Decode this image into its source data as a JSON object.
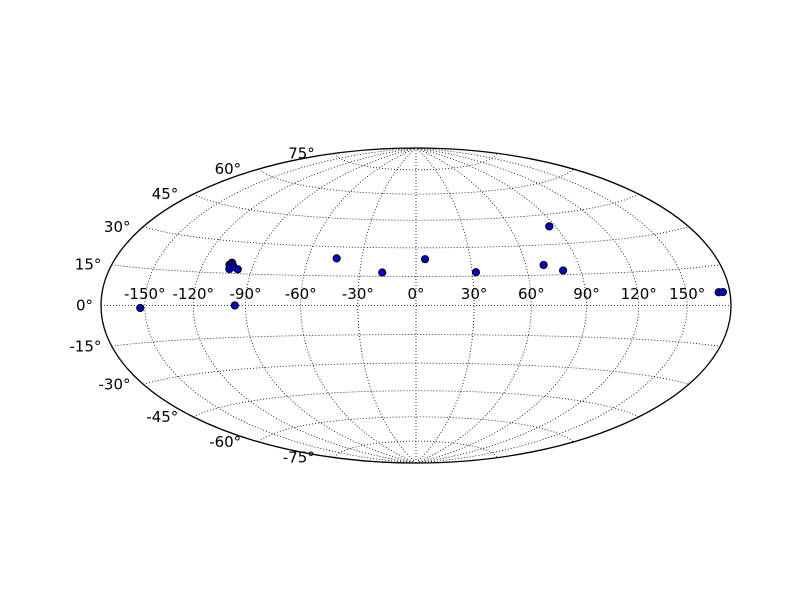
{
  "chart_data": {
    "type": "scatter",
    "projection": "hammer",
    "title": "",
    "xlabel": "",
    "ylabel": "",
    "grid": true,
    "grid_style": "dotted",
    "lon_ticks": [
      -150,
      -120,
      -90,
      -60,
      -30,
      0,
      30,
      60,
      90,
      120,
      150
    ],
    "lat_ticks": [
      -75,
      -60,
      -45,
      -30,
      -15,
      0,
      15,
      30,
      45,
      60,
      75
    ],
    "lon_tick_labels": [
      "-150°",
      "-120°",
      "-90°",
      "-60°",
      "-30°",
      "0°",
      "30°",
      "60°",
      "90°",
      "120°",
      "150°"
    ],
    "lat_tick_labels": [
      "-75°",
      "-60°",
      "-45°",
      "-30°",
      "-15°",
      "0°",
      "15°",
      "30°",
      "45°",
      "60°",
      "75°"
    ],
    "series": [
      {
        "marker_color": "#0000cc",
        "edge_color": "#000000",
        "points": [
          {
            "x": -153,
            "y": -1
          },
          {
            "x": -96,
            "y": 0
          },
          {
            "x": -104,
            "y": 19
          },
          {
            "x": -103,
            "y": 20
          },
          {
            "x": -102,
            "y": 19
          },
          {
            "x": -103,
            "y": 17
          },
          {
            "x": -101,
            "y": 18
          },
          {
            "x": -98,
            "y": 17
          },
          {
            "x": -44,
            "y": 24
          },
          {
            "x": -18,
            "y": 17
          },
          {
            "x": 5,
            "y": 24
          },
          {
            "x": 32,
            "y": 17
          },
          {
            "x": 70,
            "y": 20
          },
          {
            "x": 80,
            "y": 17
          },
          {
            "x": 86,
            "y": 39
          },
          {
            "x": 172,
            "y": 5
          },
          {
            "x": 175,
            "y": 5
          }
        ]
      }
    ]
  }
}
